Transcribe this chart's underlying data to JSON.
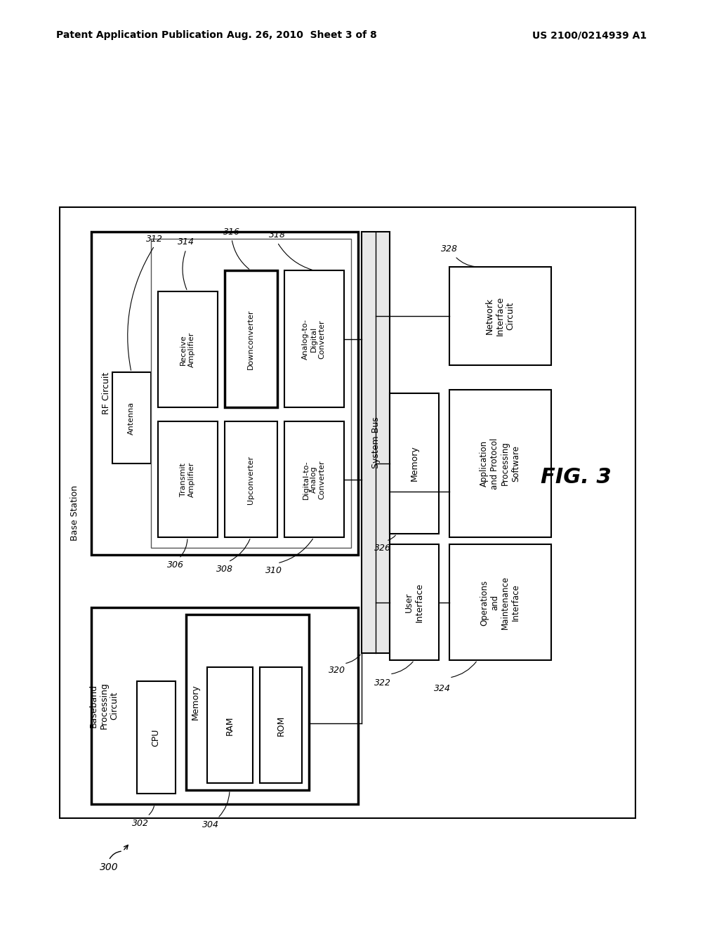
{
  "bg_color": "#ffffff",
  "header_left": "Patent Application Publication",
  "header_mid": "Aug. 26, 2010  Sheet 3 of 8",
  "header_right": "US 2100/0214939 A1",
  "fig_label": "FIG. 3",
  "ref_300": "300"
}
